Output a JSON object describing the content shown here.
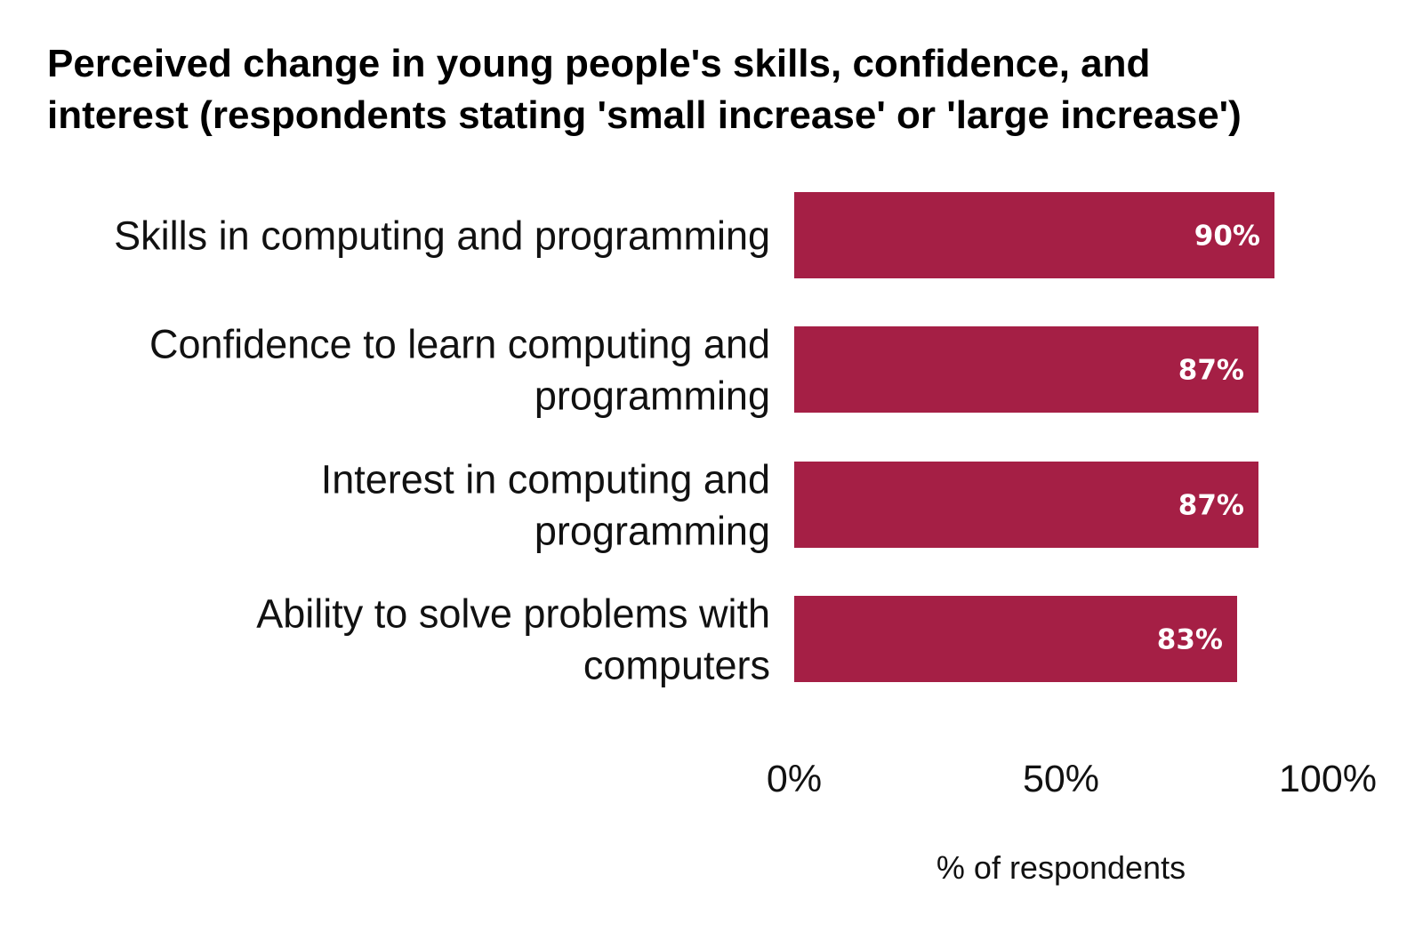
{
  "chart_data": {
    "type": "bar",
    "orientation": "horizontal",
    "title": "Perceived change in young people's skills, confidence, and interest (respondents stating  'small increase' or 'large increase')",
    "title_lines": [
      "Perceived change in young people's skills, confidence, and",
      "interest (respondents stating  'small increase' or 'large increase')"
    ],
    "categories": [
      "Skills in computing and programming",
      "Confidence to learn computing and programming",
      "Interest in computing and programming",
      "Ability to solve problems with computers"
    ],
    "category_lines": [
      [
        "Skills in computing and programming"
      ],
      [
        "Confidence to learn computing and",
        "programming"
      ],
      [
        "Interest in computing and",
        "programming"
      ],
      [
        "Ability to solve problems with",
        "computers"
      ]
    ],
    "values": [
      90,
      87,
      87,
      83
    ],
    "data_labels": [
      "90%",
      "87%",
      "87%",
      "83%"
    ],
    "xlabel": "% of respondents",
    "ylabel": "",
    "xlim": [
      0,
      100
    ],
    "xticks": [
      0,
      50,
      100
    ],
    "xtick_labels": [
      "0%",
      "50%",
      "100%"
    ],
    "grid": false,
    "legend": "none",
    "bar_color": "#a51f45",
    "label_color": "#ffffff"
  }
}
